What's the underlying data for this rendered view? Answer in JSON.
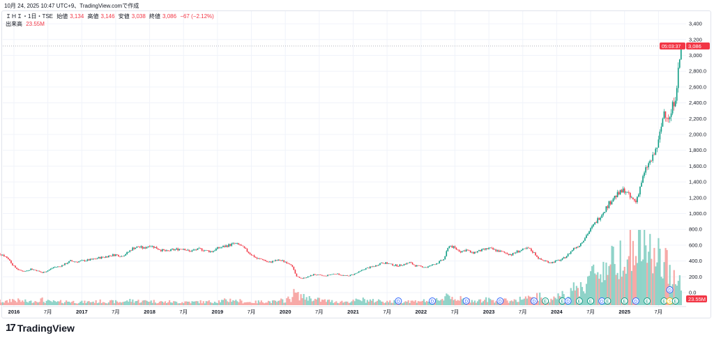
{
  "header": {
    "timestamp": "10月 24, 2025 10:47 UTC+9、TradingView.comで作成",
    "symbol": "ＩＨＩ・1日・TSE",
    "open_label": "始値",
    "open": "3,134",
    "high_label": "高値",
    "high": "3,146",
    "low_label": "安値",
    "low": "3,038",
    "close_label": "終値",
    "close": "3,086",
    "change": "−67 (−2.12%)",
    "volume_label": "出来高",
    "volume": "23.55M"
  },
  "price_badge": {
    "price": "3,086",
    "countdown": "05:03:37"
  },
  "volume_badge": "23.55M",
  "logo_text": "TradingView",
  "colors": {
    "up": "#089981",
    "down": "#f23645",
    "up_vol": "#8fd3c8",
    "down_vol": "#f7a9a7",
    "grid": "#f0f3fa"
  },
  "chart_data": {
    "type": "candlestick",
    "title": "ＩＨＩ・1日・TSE",
    "start": "2015-10",
    "interval": "month",
    "closes": [
      500,
      480,
      430,
      330,
      280,
      270,
      300,
      280,
      250,
      280,
      320,
      330,
      360,
      400,
      390,
      400,
      410,
      420,
      440,
      450,
      470,
      480,
      460,
      500,
      560,
      580,
      560,
      600,
      570,
      540,
      520,
      540,
      550,
      560,
      520,
      540,
      550,
      530,
      520,
      560,
      580,
      600,
      620,
      600,
      540,
      480,
      430,
      420,
      380,
      400,
      410,
      390,
      360,
      200,
      180,
      200,
      230,
      220,
      210,
      230,
      240,
      220,
      210,
      230,
      260,
      300,
      320,
      340,
      380,
      370,
      350,
      340,
      360,
      380,
      340,
      330,
      320,
      350,
      380,
      420,
      600,
      560,
      520,
      540,
      500,
      520,
      540,
      560,
      540,
      520,
      500,
      480,
      520,
      540,
      560,
      500,
      420,
      400,
      380,
      400,
      420,
      480,
      560,
      600,
      700,
      800,
      900,
      1000,
      1100,
      1200,
      1250,
      1300,
      1200,
      1150,
      1400,
      1600,
      1700,
      1900,
      2300,
      2200,
      2500,
      3086
    ],
    "volumes_m": [
      12,
      10,
      9,
      14,
      12,
      10,
      9,
      11,
      14,
      10,
      9,
      8,
      9,
      10,
      9,
      8,
      8,
      9,
      9,
      10,
      9,
      9,
      8,
      10,
      12,
      11,
      10,
      12,
      10,
      9,
      8,
      9,
      8,
      8,
      9,
      8,
      9,
      8,
      9,
      10,
      11,
      12,
      14,
      11,
      9,
      8,
      8,
      9,
      10,
      9,
      9,
      12,
      16,
      30,
      24,
      20,
      18,
      14,
      12,
      11,
      10,
      9,
      9,
      10,
      12,
      14,
      12,
      11,
      12,
      10,
      9,
      9,
      10,
      11,
      10,
      12,
      11,
      12,
      14,
      16,
      28,
      20,
      16,
      14,
      13,
      12,
      12,
      14,
      13,
      12,
      12,
      11,
      14,
      16,
      18,
      16,
      22,
      14,
      12,
      20,
      26,
      30,
      40,
      42,
      50,
      70,
      80,
      90,
      100,
      110,
      120,
      140,
      150,
      130,
      160,
      150,
      140,
      120,
      110,
      100,
      90,
      60
    ],
    "price_axis": {
      "ticks": [
        "0.0",
        "200.0",
        "400.0",
        "600.0",
        "800.0",
        "1,000.0",
        "1,200.0",
        "1,400.0",
        "1,600.0",
        "1,800.0",
        "2,000.0",
        "2,200.0",
        "2,400.0",
        "2,600.0",
        "2,800.0",
        "3,000",
        "3,200",
        "3,400"
      ],
      "range": [
        0,
        3400
      ]
    },
    "time_axis": {
      "ticks": [
        "2016",
        "7月",
        "2017",
        "7月",
        "2018",
        "7月",
        "2019",
        "7月",
        "2020",
        "7月",
        "2021",
        "7月",
        "2022",
        "7月",
        "2023",
        "7月",
        "2024",
        "7月",
        "2025",
        "7月"
      ]
    },
    "events": [
      {
        "type": "D",
        "date": "2021-09"
      },
      {
        "type": "D",
        "date": "2022-03"
      },
      {
        "type": "D",
        "date": "2022-09"
      },
      {
        "type": "D",
        "date": "2023-03"
      },
      {
        "type": "D",
        "date": "2023-09"
      },
      {
        "type": "E",
        "date": "2023-11"
      },
      {
        "type": "E",
        "date": "2024-02"
      },
      {
        "type": "D",
        "date": "2024-03"
      },
      {
        "type": "E",
        "date": "2024-05"
      },
      {
        "type": "E",
        "date": "2024-07"
      },
      {
        "type": "D",
        "date": "2024-09"
      },
      {
        "type": "E",
        "date": "2024-10"
      },
      {
        "type": "E",
        "date": "2025-01"
      },
      {
        "type": "D",
        "date": "2025-03"
      },
      {
        "type": "E",
        "date": "2025-05"
      },
      {
        "type": "E",
        "date": "2025-08"
      },
      {
        "type": "S",
        "date": "2025-09"
      },
      {
        "type": "E",
        "date": "2025-10"
      },
      {
        "type": "D",
        "date": "2025-09",
        "upper": true
      }
    ]
  }
}
